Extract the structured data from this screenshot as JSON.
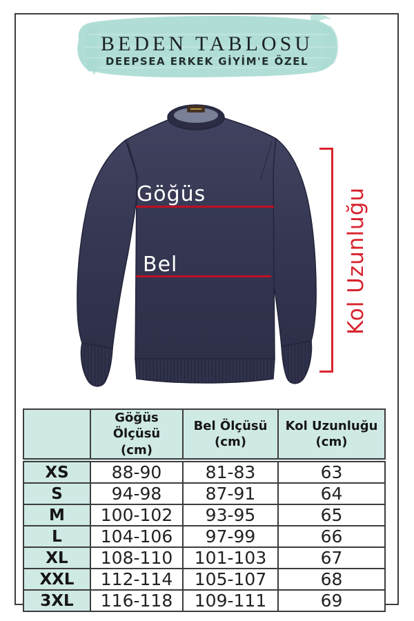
{
  "colors": {
    "mint_brush": "#a9dbd3",
    "mint_table": "#cfe9e5",
    "red_line": "#c00f22",
    "red_accent": "#d8232e",
    "navy_sweater": "#363853",
    "ink": "#1c2125",
    "border": "#3c3c3c"
  },
  "header": {
    "title": "BEDEN TABLOSU",
    "subtitle": "DEEPSEA ERKEK GİYİM'E ÖZEL"
  },
  "diagram": {
    "chest_label": "Göğüs",
    "waist_label": "Bel",
    "sleeve_label": "Kol Uzunluğu"
  },
  "table": {
    "columns": [
      {
        "label": "",
        "unit": ""
      },
      {
        "label": "Göğüs Ölçüsü",
        "unit": "(cm)"
      },
      {
        "label": "Bel Ölçüsü",
        "unit": "(cm)"
      },
      {
        "label": "Kol Uzunluğu",
        "unit": "(cm)"
      }
    ],
    "rows": [
      {
        "size": "XS",
        "chest": "88-90",
        "waist": "81-83",
        "sleeve": "63"
      },
      {
        "size": "S",
        "chest": "94-98",
        "waist": "87-91",
        "sleeve": "64"
      },
      {
        "size": "M",
        "chest": "100-102",
        "waist": "93-95",
        "sleeve": "65"
      },
      {
        "size": "L",
        "chest": "104-106",
        "waist": "97-99",
        "sleeve": "66"
      },
      {
        "size": "XL",
        "chest": "108-110",
        "waist": "101-103",
        "sleeve": "67"
      },
      {
        "size": "XXL",
        "chest": "112-114",
        "waist": "105-107",
        "sleeve": "68"
      },
      {
        "size": "3XL",
        "chest": "116-118",
        "waist": "109-111",
        "sleeve": "69"
      }
    ]
  }
}
